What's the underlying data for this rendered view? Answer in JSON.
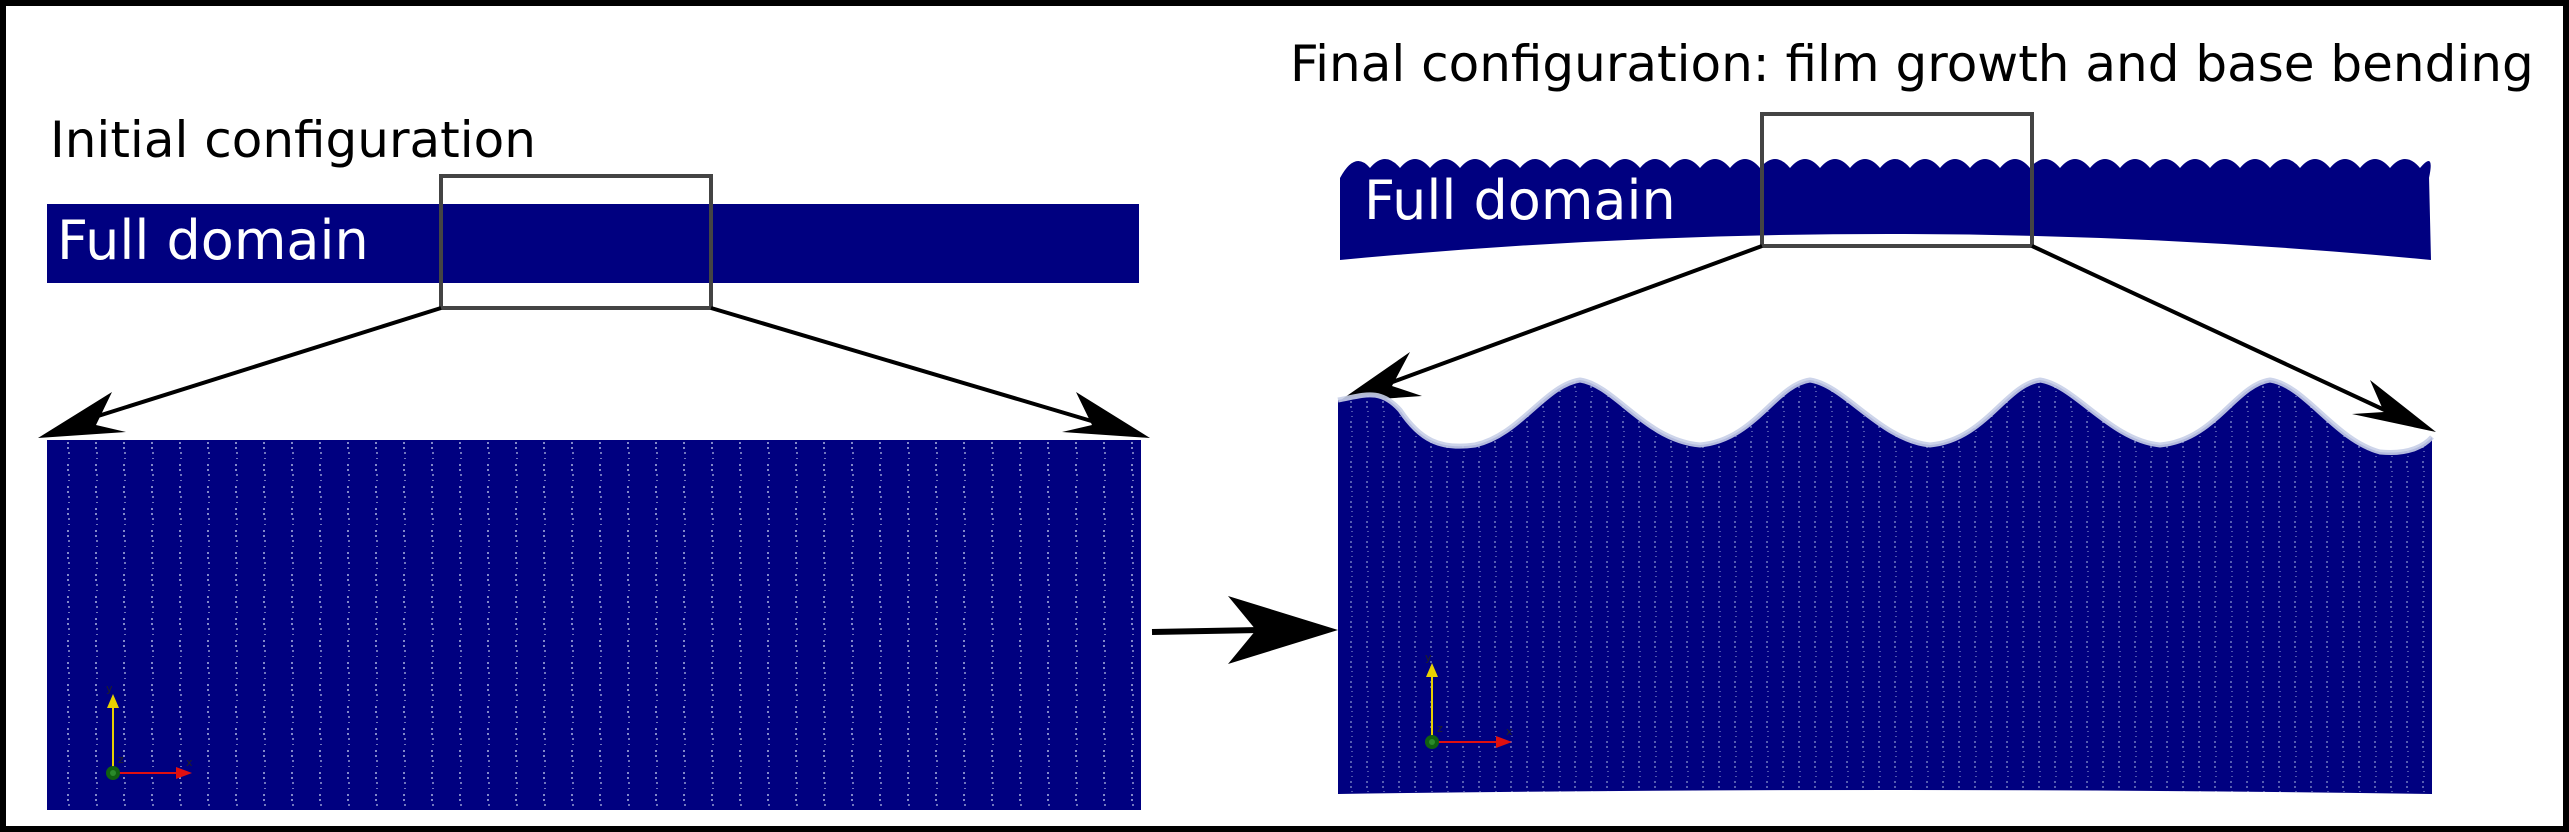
{
  "initial": {
    "title": "Initial configuration",
    "domain_label": "Full domain"
  },
  "final": {
    "title": "Final configuration: film growth and base bending",
    "domain_label": "Full domain"
  },
  "colors": {
    "domain_fill": "#000080",
    "mesh_line": "#c8cfe8",
    "frame": "#000000",
    "zoom_box": "#444444",
    "axis_x": "#e01010",
    "axis_y": "#e8d000",
    "axis_z": "#106010"
  },
  "icons": {
    "axes_triad": "xyz-axes-triad-icon",
    "transition_arrow": "arrow-right-icon"
  }
}
